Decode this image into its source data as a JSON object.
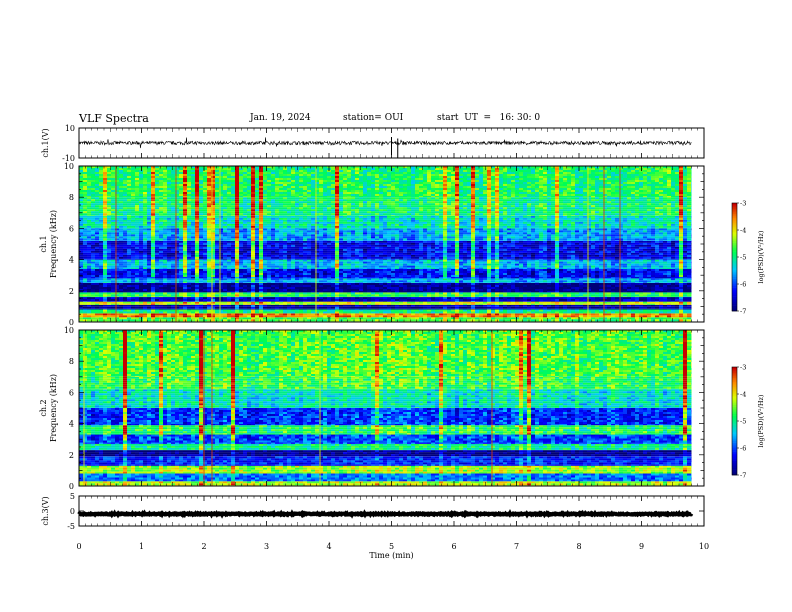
{
  "header": {
    "title": "VLF Spectra",
    "date": "Jan. 19, 2024",
    "station": "station= OUI",
    "start": "start  UT  =   16: 30: 0"
  },
  "chart_data": [
    {
      "type": "line",
      "panel": "ch1-waveform",
      "ylabel": "ch.1(V)",
      "ylim": [
        -10,
        10
      ],
      "yticks": [
        "10",
        "-10"
      ],
      "x_range_min": [
        0,
        9.8
      ],
      "baseline": 0,
      "colors": {
        "trace": "#000000"
      }
    },
    {
      "type": "heatmap",
      "panel": "ch1-spectrogram",
      "ylabel_channel": "ch.1",
      "ylabel": "Frequency (kHz)",
      "ylim": [
        0,
        10
      ],
      "yticks": [
        "0",
        "2",
        "4",
        "6",
        "8",
        "10"
      ],
      "x_range_min": [
        0,
        9.8
      ],
      "colorbar": {
        "label": "log(PSD)(V²/Hz)",
        "range": [
          -7,
          -3
        ],
        "ticks": [
          "-3",
          "-4",
          "-5",
          "-6",
          "-7"
        ]
      },
      "bands": [
        {
          "f0": 0.0,
          "f1": 0.3,
          "level": -4.6
        },
        {
          "f0": 0.3,
          "f1": 0.55,
          "level": -3.6
        },
        {
          "f0": 0.55,
          "f1": 0.8,
          "level": -5.0
        },
        {
          "f0": 0.8,
          "f1": 1.1,
          "level": -6.8
        },
        {
          "f0": 1.1,
          "f1": 1.3,
          "level": -4.2
        },
        {
          "f0": 1.3,
          "f1": 1.6,
          "level": -6.6
        },
        {
          "f0": 1.6,
          "f1": 1.9,
          "level": -4.8
        },
        {
          "f0": 1.9,
          "f1": 2.5,
          "level": -6.9
        },
        {
          "f0": 2.5,
          "f1": 2.8,
          "level": -5.6
        },
        {
          "f0": 2.8,
          "f1": 3.4,
          "level": -6.3
        },
        {
          "f0": 3.4,
          "f1": 4.0,
          "level": -5.5
        },
        {
          "f0": 4.0,
          "f1": 5.2,
          "level": -6.4
        },
        {
          "f0": 5.2,
          "f1": 6.0,
          "level": -5.6
        },
        {
          "f0": 6.0,
          "f1": 6.8,
          "level": -5.2
        },
        {
          "f0": 6.8,
          "f1": 8.0,
          "level": -4.9
        },
        {
          "f0": 8.0,
          "f1": 10.0,
          "level": -4.8
        }
      ]
    },
    {
      "type": "heatmap",
      "panel": "ch2-spectrogram",
      "ylabel_channel": "ch.2",
      "ylabel": "Frequency (kHz)",
      "ylim": [
        0,
        10
      ],
      "yticks": [
        "0",
        "2",
        "4",
        "6",
        "8",
        "10"
      ],
      "x_range_min": [
        0,
        9.8
      ],
      "colorbar": {
        "label": "log(PSD)(V²/Hz)",
        "range": [
          -7,
          -3
        ],
        "ticks": [
          "-3",
          "-4",
          "-5",
          "-6",
          "-7"
        ]
      },
      "bands": [
        {
          "f0": 0.0,
          "f1": 0.3,
          "level": -4.2
        },
        {
          "f0": 0.3,
          "f1": 0.8,
          "level": -5.8
        },
        {
          "f0": 0.8,
          "f1": 1.3,
          "level": -4.3
        },
        {
          "f0": 1.3,
          "f1": 1.9,
          "level": -6.2
        },
        {
          "f0": 1.9,
          "f1": 2.3,
          "level": -6.9
        },
        {
          "f0": 2.3,
          "f1": 2.7,
          "level": -5.0
        },
        {
          "f0": 2.7,
          "f1": 3.3,
          "level": -6.0
        },
        {
          "f0": 3.3,
          "f1": 3.9,
          "level": -4.8
        },
        {
          "f0": 3.9,
          "f1": 5.0,
          "level": -6.1
        },
        {
          "f0": 5.0,
          "f1": 6.2,
          "level": -5.2
        },
        {
          "f0": 6.2,
          "f1": 7.0,
          "level": -4.7
        },
        {
          "f0": 7.0,
          "f1": 10.0,
          "level": -4.6
        }
      ]
    },
    {
      "type": "line",
      "panel": "ch3-waveform",
      "ylabel": "ch.3(V)",
      "ylim": [
        -5,
        5
      ],
      "yticks": [
        "5",
        "0",
        "-5"
      ],
      "x_range_min": [
        0,
        9.8
      ],
      "baseline": -1,
      "colors": {
        "trace": "#000000"
      }
    }
  ],
  "xaxis": {
    "label": "Time  (min)",
    "ticks": [
      "0",
      "1",
      "2",
      "3",
      "4",
      "5",
      "6",
      "7",
      "8",
      "9",
      "10"
    ]
  }
}
